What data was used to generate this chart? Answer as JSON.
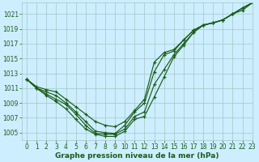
{
  "title": "Graphe pression niveau de la mer (hPa)",
  "bg_color": "#cceeff",
  "grid_color": "#aacccc",
  "line_color": "#1a5c1a",
  "marker_color": "#1a5c1a",
  "xlim": [
    -0.5,
    23
  ],
  "ylim": [
    1004.0,
    1022.5
  ],
  "yticks": [
    1005,
    1007,
    1009,
    1011,
    1013,
    1015,
    1017,
    1019,
    1021
  ],
  "xticks": [
    0,
    1,
    2,
    3,
    4,
    5,
    6,
    7,
    8,
    9,
    10,
    11,
    12,
    13,
    14,
    15,
    16,
    17,
    18,
    19,
    20,
    21,
    22,
    23
  ],
  "series": [
    {
      "x": [
        0,
        1,
        2,
        3,
        4,
        5,
        6,
        7,
        8,
        9,
        10,
        11,
        12,
        13,
        14,
        15,
        16,
        17,
        18,
        19,
        20,
        21,
        22,
        23
      ],
      "y": [
        1012.2,
        1011.2,
        1010.8,
        1010.5,
        1009.5,
        1008.5,
        1007.5,
        1006.5,
        1006.0,
        1005.8,
        1006.5,
        1008.0,
        1009.5,
        1014.5,
        1015.8,
        1016.2,
        1017.5,
        1018.8,
        1019.5,
        1019.8,
        1020.2,
        1021.0,
        1021.8,
        1022.5
      ],
      "marker": true
    },
    {
      "x": [
        0,
        1,
        2,
        3,
        4,
        5,
        6,
        7,
        8,
        9,
        10,
        11,
        12,
        13,
        14,
        15,
        16,
        17,
        18,
        19,
        20,
        21,
        22,
        23
      ],
      "y": [
        1012.2,
        1011.0,
        1010.5,
        1010.0,
        1009.0,
        1007.8,
        1006.5,
        1005.2,
        1005.0,
        1004.9,
        1006.0,
        1007.8,
        1009.0,
        1013.2,
        1015.5,
        1016.0,
        1017.5,
        1018.8,
        1019.5,
        1019.8,
        1020.2,
        1021.0,
        1021.8,
        1022.5
      ],
      "marker": true
    },
    {
      "x": [
        0,
        1,
        2,
        3,
        4,
        5,
        6,
        7,
        8,
        9,
        10,
        11,
        12,
        13,
        14,
        15,
        16,
        17,
        18,
        19,
        20,
        21,
        22,
        23
      ],
      "y": [
        1012.2,
        1011.0,
        1010.2,
        1009.5,
        1008.8,
        1007.5,
        1006.0,
        1004.9,
        1004.8,
        1004.8,
        1005.5,
        1007.2,
        1007.8,
        1011.5,
        1013.5,
        1015.5,
        1017.0,
        1018.5,
        1019.5,
        1019.8,
        1020.2,
        1021.0,
        1021.8,
        1022.5
      ],
      "marker": true
    },
    {
      "x": [
        0,
        1,
        2,
        3,
        4,
        5,
        6,
        7,
        8,
        9,
        10,
        11,
        12,
        13,
        14,
        15,
        16,
        17,
        18,
        19,
        20,
        21,
        22,
        23
      ],
      "y": [
        1012.2,
        1011.0,
        1010.0,
        1009.2,
        1008.2,
        1006.8,
        1005.5,
        1004.8,
        1004.5,
        1004.5,
        1005.2,
        1006.8,
        1007.2,
        1009.8,
        1012.5,
        1015.2,
        1016.8,
        1018.5,
        1019.5,
        1019.8,
        1020.2,
        1021.0,
        1021.5,
        1022.5
      ],
      "marker": true
    }
  ],
  "title_fontsize": 6.5,
  "tick_fontsize": 5.5
}
